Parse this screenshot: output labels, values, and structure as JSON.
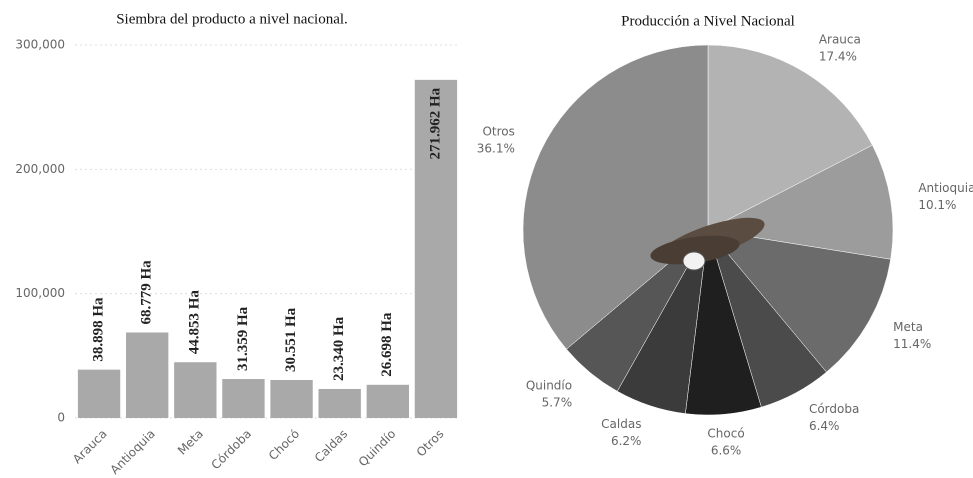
{
  "chart_data": [
    {
      "type": "bar",
      "title": "Siembra del producto a nivel nacional.",
      "categories": [
        "Arauca",
        "Antioquia",
        "Meta",
        "Córdoba",
        "Chocó",
        "Caldas",
        "Quindío",
        "Otros"
      ],
      "values": [
        38898,
        68779,
        44853,
        31359,
        30551,
        23340,
        26698,
        271962
      ],
      "value_labels": [
        "38.898 Ha",
        "68.779 Ha",
        "44.853 Ha",
        "31.359 Ha",
        "30.551 Ha",
        "23.340 Ha",
        "26.698 Ha",
        "271.962 Ha"
      ],
      "color": "#a9a9a9",
      "ylim": [
        0,
        300000
      ],
      "yticks": [
        0,
        {
          "value": 100000,
          "label": "100,000"
        },
        {
          "value": 200000,
          "label": "200,000"
        },
        {
          "value": 300000,
          "label": "300,000"
        }
      ],
      "grid": true
    },
    {
      "type": "pie",
      "title": "Producción a Nivel Nacional",
      "categories": [
        "Arauca",
        "Antioquia",
        "Meta",
        "Córdoba",
        "Chocó",
        "Caldas",
        "Quindío",
        "Otros"
      ],
      "values": [
        17.4,
        10.1,
        11.4,
        6.4,
        6.6,
        6.2,
        5.7,
        36.1
      ],
      "value_labels": [
        "17.4%",
        "10.1%",
        "11.4%",
        "6.4%",
        "6.6%",
        "6.2%",
        "5.7%",
        "36.1%"
      ],
      "colors": [
        "#b3b3b3",
        "#9c9c9c",
        "#6b6b6b",
        "#4b4b4b",
        "#1f1f1f",
        "#3b3b3b",
        "#565656",
        "#8c8c8c"
      ]
    }
  ]
}
